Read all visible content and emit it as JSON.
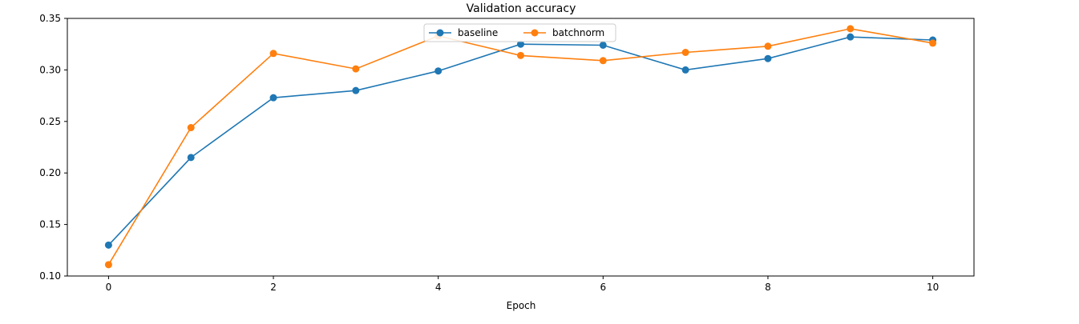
{
  "chart_data": {
    "type": "line",
    "title": "Validation accuracy",
    "xlabel": "Epoch",
    "ylabel": "",
    "xlim": [
      -0.5,
      10.5
    ],
    "ylim": [
      0.1,
      0.35
    ],
    "xticks": [
      0,
      2,
      4,
      6,
      8,
      10
    ],
    "yticks": [
      0.1,
      0.15,
      0.2,
      0.25,
      0.3,
      0.35
    ],
    "ytick_labels": [
      "0.10",
      "0.15",
      "0.20",
      "0.25",
      "0.30",
      "0.35"
    ],
    "legend_position": "top-center",
    "grid": false,
    "x": [
      0,
      1,
      2,
      3,
      4,
      5,
      6,
      7,
      8,
      9,
      10
    ],
    "series": [
      {
        "name": "baseline",
        "color": "#1f77b4",
        "values": [
          0.13,
          0.215,
          0.273,
          0.28,
          0.299,
          0.325,
          0.324,
          0.3,
          0.311,
          0.332,
          0.329
        ]
      },
      {
        "name": "batchnorm",
        "color": "#ff7f0e",
        "values": [
          0.111,
          0.244,
          0.316,
          0.301,
          0.333,
          0.314,
          0.309,
          0.317,
          0.323,
          0.34,
          0.326
        ]
      }
    ]
  }
}
